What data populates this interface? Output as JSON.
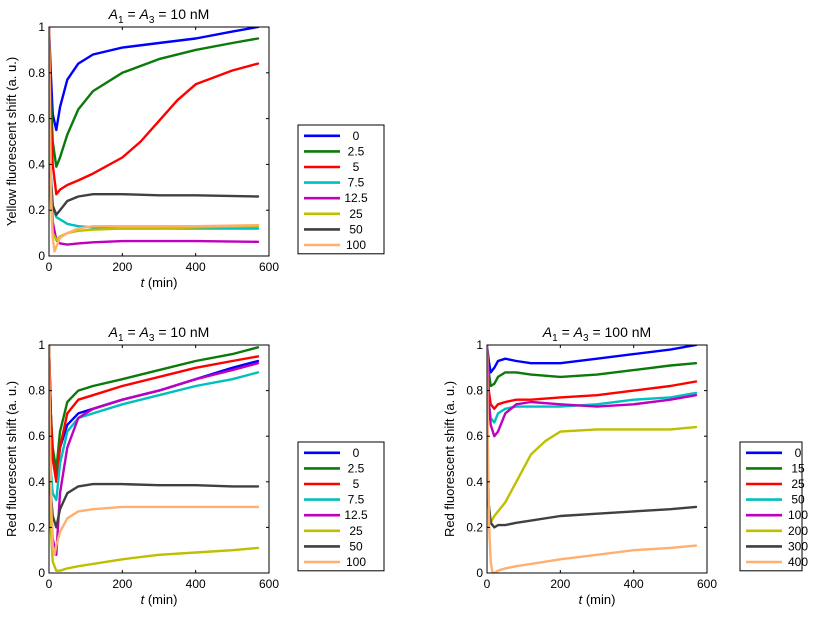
{
  "chart_data": [
    {
      "id": "top-left",
      "type": "line",
      "title_parts": [
        "A",
        "1",
        " = ",
        "A",
        "3",
        " = 10 nM"
      ],
      "xlabel_parts": [
        "t",
        " (min)"
      ],
      "ylabel": "Yellow fluorescent shift (a. u.)",
      "xlim": [
        0,
        600
      ],
      "ylim": [
        0,
        1
      ],
      "xticks": [
        0,
        200,
        400,
        600
      ],
      "yticks": [
        0,
        0.2,
        0.4,
        0.6,
        0.8,
        1
      ],
      "ytick_labels": [
        "0",
        "0.2",
        "0.4",
        "0.6",
        "0.8",
        "1"
      ],
      "legend_location": "outside right",
      "series": [
        {
          "name": "0",
          "color": "#0000ff",
          "x": [
            0,
            5,
            10,
            20,
            30,
            50,
            80,
            120,
            200,
            300,
            400,
            500,
            570
          ],
          "y": [
            1,
            0.8,
            0.62,
            0.55,
            0.65,
            0.77,
            0.84,
            0.88,
            0.91,
            0.93,
            0.95,
            0.98,
            1.0
          ]
        },
        {
          "name": "2.5",
          "color": "#0b7a0b",
          "x": [
            0,
            5,
            10,
            20,
            30,
            50,
            80,
            120,
            200,
            300,
            400,
            500,
            570
          ],
          "y": [
            1,
            0.7,
            0.5,
            0.39,
            0.43,
            0.53,
            0.64,
            0.72,
            0.8,
            0.86,
            0.9,
            0.93,
            0.95
          ]
        },
        {
          "name": "5",
          "color": "#ff0000",
          "x": [
            0,
            5,
            10,
            20,
            30,
            50,
            80,
            120,
            200,
            250,
            300,
            350,
            400,
            500,
            570
          ],
          "y": [
            1,
            0.6,
            0.4,
            0.27,
            0.29,
            0.31,
            0.33,
            0.36,
            0.43,
            0.5,
            0.59,
            0.68,
            0.75,
            0.81,
            0.84
          ]
        },
        {
          "name": "7.5",
          "color": "#00bfbf",
          "x": [
            0,
            5,
            10,
            20,
            30,
            50,
            80,
            120,
            200,
            300,
            400,
            570
          ],
          "y": [
            0.55,
            0.35,
            0.22,
            0.17,
            0.16,
            0.14,
            0.13,
            0.125,
            0.12,
            0.12,
            0.12,
            0.12
          ]
        },
        {
          "name": "12.5",
          "color": "#bf00bf",
          "x": [
            0,
            5,
            10,
            20,
            30,
            50,
            80,
            120,
            200,
            300,
            400,
            570
          ],
          "y": [
            0.55,
            0.3,
            0.15,
            0.07,
            0.055,
            0.05,
            0.055,
            0.06,
            0.065,
            0.065,
            0.065,
            0.062
          ]
        },
        {
          "name": "25",
          "color": "#bfbf00",
          "x": [
            0,
            5,
            10,
            20,
            30,
            50,
            80,
            120,
            200,
            300,
            400,
            570
          ],
          "y": [
            0.55,
            0.25,
            0.1,
            0.07,
            0.085,
            0.1,
            0.11,
            0.115,
            0.12,
            0.12,
            0.125,
            0.13
          ]
        },
        {
          "name": "50",
          "color": "#404040",
          "x": [
            0,
            5,
            10,
            20,
            30,
            50,
            80,
            120,
            200,
            300,
            400,
            570
          ],
          "y": [
            0.55,
            0.35,
            0.22,
            0.18,
            0.2,
            0.24,
            0.26,
            0.27,
            0.27,
            0.265,
            0.265,
            0.26
          ]
        },
        {
          "name": "100",
          "color": "#ffb070",
          "x": [
            0,
            3,
            6,
            10,
            15,
            20,
            30,
            50,
            80,
            120,
            200,
            300,
            400,
            570
          ],
          "y": [
            1,
            0.6,
            0.25,
            0.08,
            0.02,
            0.04,
            0.08,
            0.1,
            0.12,
            0.13,
            0.13,
            0.13,
            0.13,
            0.135
          ]
        }
      ]
    },
    {
      "id": "bottom-left",
      "type": "line",
      "title_parts": [
        "A",
        "1",
        " = ",
        "A",
        "3",
        " = 10 nM"
      ],
      "xlabel_parts": [
        "t",
        " (min)"
      ],
      "ylabel": "Red fluorescent shift (a. u.)",
      "xlim": [
        0,
        600
      ],
      "ylim": [
        0,
        1
      ],
      "xticks": [
        0,
        200,
        400,
        600
      ],
      "yticks": [
        0,
        0.2,
        0.4,
        0.6,
        0.8,
        1
      ],
      "ytick_labels": [
        "0",
        "0.2",
        "0.4",
        "0.6",
        "0.8",
        "1"
      ],
      "legend_location": "outside right",
      "series": [
        {
          "name": "0",
          "color": "#0000ff",
          "x": [
            0,
            5,
            10,
            20,
            30,
            50,
            80,
            120,
            200,
            300,
            400,
            500,
            570
          ],
          "y": [
            1,
            0.7,
            0.5,
            0.42,
            0.55,
            0.65,
            0.7,
            0.72,
            0.76,
            0.8,
            0.85,
            0.9,
            0.93
          ]
        },
        {
          "name": "2.5",
          "color": "#0b7a0b",
          "x": [
            0,
            5,
            10,
            20,
            30,
            50,
            80,
            120,
            200,
            300,
            400,
            500,
            570
          ],
          "y": [
            1,
            0.7,
            0.55,
            0.45,
            0.62,
            0.75,
            0.8,
            0.82,
            0.85,
            0.89,
            0.93,
            0.96,
            0.99
          ]
        },
        {
          "name": "5",
          "color": "#ff0000",
          "x": [
            0,
            5,
            10,
            20,
            30,
            50,
            80,
            120,
            200,
            300,
            400,
            500,
            570
          ],
          "y": [
            1,
            0.7,
            0.5,
            0.4,
            0.55,
            0.7,
            0.76,
            0.78,
            0.82,
            0.86,
            0.9,
            0.93,
            0.95
          ]
        },
        {
          "name": "7.5",
          "color": "#00bfbf",
          "x": [
            0,
            5,
            10,
            20,
            30,
            50,
            80,
            120,
            200,
            300,
            400,
            500,
            570
          ],
          "y": [
            0.6,
            0.45,
            0.35,
            0.32,
            0.48,
            0.62,
            0.68,
            0.7,
            0.74,
            0.78,
            0.82,
            0.85,
            0.88
          ]
        },
        {
          "name": "12.5",
          "color": "#bf00bf",
          "x": [
            0,
            5,
            10,
            20,
            30,
            50,
            80,
            120,
            200,
            300,
            400,
            500,
            570
          ],
          "y": [
            0.6,
            0.3,
            0.15,
            0.08,
            0.35,
            0.55,
            0.68,
            0.72,
            0.76,
            0.8,
            0.85,
            0.89,
            0.92
          ]
        },
        {
          "name": "25",
          "color": "#bfbf00",
          "x": [
            0,
            5,
            10,
            20,
            30,
            50,
            80,
            120,
            200,
            300,
            400,
            500,
            570
          ],
          "y": [
            0.6,
            0.2,
            0.05,
            0.01,
            0.01,
            0.02,
            0.03,
            0.04,
            0.06,
            0.08,
            0.09,
            0.1,
            0.11
          ]
        },
        {
          "name": "50",
          "color": "#404040",
          "x": [
            0,
            5,
            10,
            20,
            30,
            50,
            80,
            120,
            200,
            300,
            400,
            500,
            570
          ],
          "y": [
            0.6,
            0.35,
            0.25,
            0.2,
            0.28,
            0.35,
            0.38,
            0.39,
            0.39,
            0.385,
            0.385,
            0.38,
            0.38
          ]
        },
        {
          "name": "100",
          "color": "#ffb070",
          "x": [
            0,
            3,
            6,
            10,
            15,
            20,
            30,
            50,
            80,
            120,
            200,
            300,
            400,
            570
          ],
          "y": [
            1,
            0.6,
            0.3,
            0.12,
            0.08,
            0.12,
            0.18,
            0.24,
            0.27,
            0.28,
            0.29,
            0.29,
            0.29,
            0.29
          ]
        }
      ]
    },
    {
      "id": "bottom-right",
      "type": "line",
      "title_parts": [
        "A",
        "1",
        " = ",
        "A",
        "3",
        " = 100 nM"
      ],
      "xlabel_parts": [
        "t",
        " (min)"
      ],
      "ylabel": "Red fluorescent shift (a. u.)",
      "xlim": [
        0,
        600
      ],
      "ylim": [
        0,
        1
      ],
      "xticks": [
        0,
        200,
        400,
        600
      ],
      "yticks": [
        0,
        0.2,
        0.4,
        0.6,
        0.8,
        1
      ],
      "ytick_labels": [
        "0",
        "0.2",
        "0.4",
        "0.6",
        "0.8",
        "1"
      ],
      "legend_location": "outside right",
      "series": [
        {
          "name": "0",
          "color": "#0000ff",
          "x": [
            0,
            5,
            10,
            20,
            30,
            50,
            80,
            120,
            200,
            300,
            400,
            500,
            570
          ],
          "y": [
            1,
            0.93,
            0.88,
            0.9,
            0.93,
            0.94,
            0.93,
            0.92,
            0.92,
            0.94,
            0.96,
            0.98,
            1.0
          ]
        },
        {
          "name": "15",
          "color": "#0b7a0b",
          "x": [
            0,
            5,
            10,
            20,
            30,
            50,
            80,
            120,
            200,
            300,
            400,
            500,
            570
          ],
          "y": [
            1,
            0.88,
            0.82,
            0.83,
            0.86,
            0.88,
            0.88,
            0.87,
            0.86,
            0.87,
            0.89,
            0.91,
            0.92
          ]
        },
        {
          "name": "25",
          "color": "#ff0000",
          "x": [
            0,
            5,
            10,
            20,
            30,
            50,
            80,
            120,
            200,
            300,
            400,
            500,
            570
          ],
          "y": [
            1,
            0.8,
            0.74,
            0.72,
            0.74,
            0.75,
            0.76,
            0.76,
            0.77,
            0.78,
            0.8,
            0.82,
            0.84
          ]
        },
        {
          "name": "50",
          "color": "#00bfbf",
          "x": [
            0,
            5,
            10,
            20,
            30,
            50,
            80,
            120,
            200,
            300,
            400,
            500,
            570
          ],
          "y": [
            1,
            0.75,
            0.68,
            0.66,
            0.7,
            0.72,
            0.73,
            0.73,
            0.73,
            0.74,
            0.76,
            0.77,
            0.79
          ]
        },
        {
          "name": "100",
          "color": "#bf00bf",
          "x": [
            0,
            5,
            10,
            20,
            30,
            50,
            80,
            120,
            200,
            300,
            400,
            500,
            570
          ],
          "y": [
            1,
            0.75,
            0.65,
            0.6,
            0.62,
            0.7,
            0.74,
            0.75,
            0.74,
            0.73,
            0.74,
            0.76,
            0.78
          ]
        },
        {
          "name": "200",
          "color": "#bfbf00",
          "x": [
            0,
            5,
            10,
            20,
            30,
            50,
            80,
            120,
            160,
            200,
            300,
            400,
            500,
            570
          ],
          "y": [
            0.55,
            0.3,
            0.22,
            0.25,
            0.27,
            0.31,
            0.4,
            0.52,
            0.58,
            0.62,
            0.63,
            0.63,
            0.63,
            0.64
          ]
        },
        {
          "name": "300",
          "color": "#404040",
          "x": [
            0,
            5,
            10,
            20,
            30,
            50,
            80,
            120,
            200,
            300,
            400,
            500,
            570
          ],
          "y": [
            0.55,
            0.3,
            0.22,
            0.2,
            0.21,
            0.21,
            0.22,
            0.23,
            0.25,
            0.26,
            0.27,
            0.28,
            0.29
          ]
        },
        {
          "name": "400",
          "color": "#ffb070",
          "x": [
            0,
            3,
            6,
            10,
            15,
            20,
            30,
            50,
            80,
            120,
            200,
            300,
            400,
            500,
            570
          ],
          "y": [
            1,
            0.5,
            0.2,
            0.05,
            0.0,
            0.0,
            0.01,
            0.02,
            0.03,
            0.04,
            0.06,
            0.08,
            0.1,
            0.11,
            0.12
          ]
        }
      ]
    }
  ]
}
